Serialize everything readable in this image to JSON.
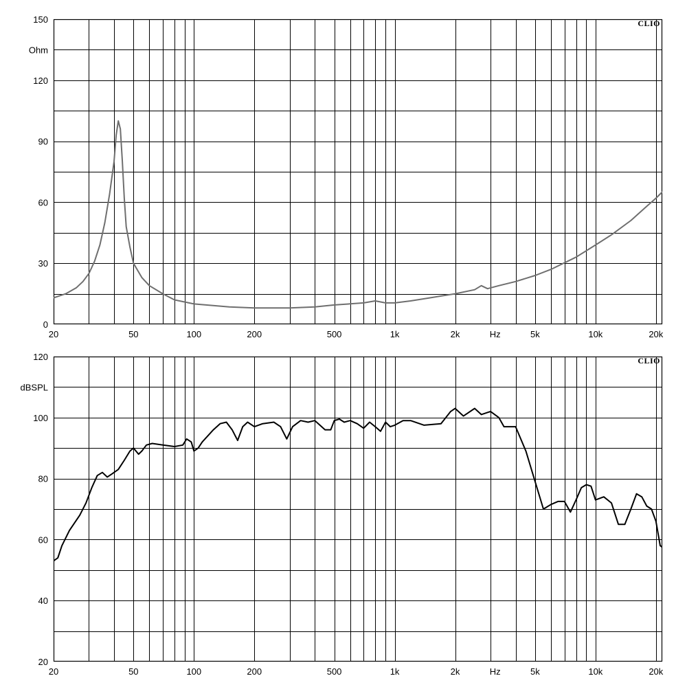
{
  "chart_data": [
    {
      "type": "line",
      "scale_x": "log",
      "xlim": [
        20,
        20000
      ],
      "ylim": [
        0,
        150
      ],
      "y_major_ticks": [
        0,
        30,
        60,
        90,
        120,
        150
      ],
      "y_tick_labels": [
        "0",
        "30",
        "60",
        "90",
        "120",
        "150"
      ],
      "ylabel": "Ohm",
      "x_unit_label": "Hz",
      "brand": "CLIO",
      "grid": true,
      "x_tick_values": [
        20,
        50,
        100,
        200,
        500,
        1000,
        2000,
        5000,
        10000,
        20000
      ],
      "x_tick_labels": [
        "20",
        "50",
        "100",
        "200",
        "500",
        "1k",
        "2k",
        "5k",
        "10k",
        "20k"
      ],
      "series": [
        {
          "color": "#6e6e6e",
          "points": [
            [
              20,
              13
            ],
            [
              23,
              15
            ],
            [
              26,
              18
            ],
            [
              28,
              21
            ],
            [
              30,
              25
            ],
            [
              32,
              31
            ],
            [
              34,
              39
            ],
            [
              36,
              50
            ],
            [
              38,
              64
            ],
            [
              40,
              80
            ],
            [
              41,
              93
            ],
            [
              42,
              100
            ],
            [
              43,
              96
            ],
            [
              44,
              80
            ],
            [
              45,
              62
            ],
            [
              46,
              48
            ],
            [
              48,
              38
            ],
            [
              50,
              30
            ],
            [
              55,
              23
            ],
            [
              60,
              19
            ],
            [
              70,
              15
            ],
            [
              80,
              12
            ],
            [
              100,
              10
            ],
            [
              150,
              8.5
            ],
            [
              200,
              8
            ],
            [
              300,
              8
            ],
            [
              400,
              8.5
            ],
            [
              500,
              9.5
            ],
            [
              700,
              10.5
            ],
            [
              800,
              11.5
            ],
            [
              900,
              10.5
            ],
            [
              1000,
              10.5
            ],
            [
              1200,
              11.5
            ],
            [
              1500,
              13
            ],
            [
              2000,
              15
            ],
            [
              2500,
              17
            ],
            [
              2700,
              19
            ],
            [
              2900,
              17.5
            ],
            [
              3300,
              19
            ],
            [
              4000,
              21
            ],
            [
              5000,
              24
            ],
            [
              6000,
              27
            ],
            [
              8000,
              33
            ],
            [
              10000,
              39
            ],
            [
              12000,
              44
            ],
            [
              15000,
              51
            ],
            [
              18000,
              58
            ],
            [
              20000,
              62
            ],
            [
              22000,
              66
            ]
          ]
        }
      ]
    },
    {
      "type": "line",
      "scale_x": "log",
      "xlim": [
        20,
        20000
      ],
      "ylim": [
        20,
        120
      ],
      "y_major_ticks": [
        20,
        40,
        60,
        80,
        100,
        120
      ],
      "y_tick_labels": [
        "20",
        "40",
        "60",
        "80",
        "100",
        "120"
      ],
      "ylabel": "dBSPL",
      "x_unit_label": "Hz",
      "brand": "CLIO",
      "grid": true,
      "x_tick_values": [
        20,
        50,
        100,
        200,
        500,
        1000,
        2000,
        5000,
        10000,
        20000
      ],
      "x_tick_labels": [
        "20",
        "50",
        "100",
        "200",
        "500",
        "1k",
        "2k",
        "5k",
        "10k",
        "20k"
      ],
      "series": [
        {
          "color": "#000000",
          "points": [
            [
              20,
              53
            ],
            [
              21,
              54
            ],
            [
              22,
              58
            ],
            [
              24,
              63
            ],
            [
              27,
              68
            ],
            [
              29,
              72
            ],
            [
              31,
              77
            ],
            [
              33,
              81
            ],
            [
              35,
              82
            ],
            [
              37,
              80.5
            ],
            [
              39,
              81.5
            ],
            [
              42,
              83
            ],
            [
              45,
              86
            ],
            [
              48,
              89
            ],
            [
              50,
              90
            ],
            [
              53,
              88
            ],
            [
              55,
              89
            ],
            [
              58,
              91
            ],
            [
              62,
              91.5
            ],
            [
              70,
              91
            ],
            [
              80,
              90.5
            ],
            [
              88,
              91
            ],
            [
              92,
              93
            ],
            [
              97,
              92
            ],
            [
              100,
              89
            ],
            [
              105,
              90
            ],
            [
              110,
              92
            ],
            [
              125,
              96
            ],
            [
              135,
              98
            ],
            [
              145,
              98.5
            ],
            [
              155,
              96
            ],
            [
              165,
              92.5
            ],
            [
              175,
              97
            ],
            [
              185,
              98.5
            ],
            [
              200,
              97
            ],
            [
              220,
              98
            ],
            [
              250,
              98.5
            ],
            [
              270,
              97
            ],
            [
              290,
              93
            ],
            [
              310,
              97
            ],
            [
              340,
              99
            ],
            [
              370,
              98.5
            ],
            [
              400,
              99
            ],
            [
              450,
              96
            ],
            [
              480,
              96
            ],
            [
              500,
              99
            ],
            [
              530,
              99.5
            ],
            [
              560,
              98.5
            ],
            [
              600,
              99
            ],
            [
              650,
              98
            ],
            [
              700,
              96.5
            ],
            [
              750,
              98.5
            ],
            [
              800,
              97
            ],
            [
              850,
              95.5
            ],
            [
              900,
              98.5
            ],
            [
              950,
              97
            ],
            [
              1000,
              97.5
            ],
            [
              1100,
              99
            ],
            [
              1200,
              99
            ],
            [
              1400,
              97.5
            ],
            [
              1700,
              98
            ],
            [
              1900,
              102
            ],
            [
              2000,
              103
            ],
            [
              2200,
              100.5
            ],
            [
              2500,
              103
            ],
            [
              2700,
              101
            ],
            [
              3000,
              102
            ],
            [
              3300,
              100
            ],
            [
              3500,
              97
            ],
            [
              4000,
              97
            ],
            [
              4500,
              89
            ],
            [
              5000,
              79
            ],
            [
              5500,
              70
            ],
            [
              6000,
              71.5
            ],
            [
              6500,
              72.5
            ],
            [
              7000,
              72.5
            ],
            [
              7500,
              69
            ],
            [
              8000,
              73
            ],
            [
              8500,
              77
            ],
            [
              9000,
              78
            ],
            [
              9500,
              77.5
            ],
            [
              10000,
              73
            ],
            [
              11000,
              74
            ],
            [
              12000,
              72
            ],
            [
              13000,
              65
            ],
            [
              14000,
              65
            ],
            [
              15000,
              70
            ],
            [
              16000,
              75
            ],
            [
              17000,
              74
            ],
            [
              18000,
              71
            ],
            [
              19000,
              70
            ],
            [
              20000,
              66
            ],
            [
              21000,
              58
            ],
            [
              22000,
              57
            ]
          ]
        }
      ]
    }
  ]
}
